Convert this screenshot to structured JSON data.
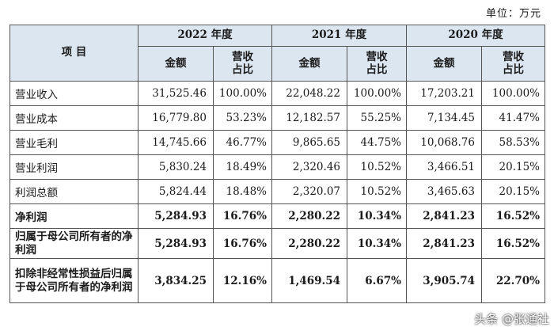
{
  "unit_label": "单位：万元",
  "header": {
    "item_label": "项  目",
    "years": [
      "2022 年度",
      "2021 年度",
      "2020 年度"
    ],
    "amount_label": "金额",
    "ratio_label_line1": "营收",
    "ratio_label_line2": "占比"
  },
  "rows": [
    {
      "label": "营业收入",
      "v": [
        "31,525.46",
        "100.00%",
        "22,048.22",
        "100.00%",
        "17,203.21",
        "100.00%"
      ]
    },
    {
      "label": "营业成本",
      "v": [
        "16,779.80",
        "53.23%",
        "12,182.57",
        "55.25%",
        "7,134.45",
        "41.47%"
      ]
    },
    {
      "label": "营业毛利",
      "v": [
        "14,745.66",
        "46.77%",
        "9,865.65",
        "44.75%",
        "10,068.76",
        "58.53%"
      ]
    },
    {
      "label": "营业利润",
      "v": [
        "5,830.24",
        "18.49%",
        "2,320.46",
        "10.52%",
        "3,466.51",
        "20.15%"
      ]
    },
    {
      "label": "利润总额",
      "v": [
        "5,824.44",
        "18.48%",
        "2,320.07",
        "10.52%",
        "3,465.63",
        "20.15%"
      ]
    },
    {
      "label": "净利润",
      "v": [
        "5,284.93",
        "16.76%",
        "2,280.22",
        "10.34%",
        "2,841.23",
        "16.52%"
      ]
    },
    {
      "label": "归属于母公司所有者的净利润",
      "v": [
        "5,284.93",
        "16.76%",
        "2,280.22",
        "10.34%",
        "2,841.23",
        "16.52%"
      ]
    },
    {
      "label": "扣除非经常性损益后归属于母公司所有者的净利润",
      "v": [
        "3,834.25",
        "12.16%",
        "1,469.54",
        "6.67%",
        "3,905.74",
        "22.70%"
      ]
    }
  ],
  "watermark": "头条 @张通社"
}
